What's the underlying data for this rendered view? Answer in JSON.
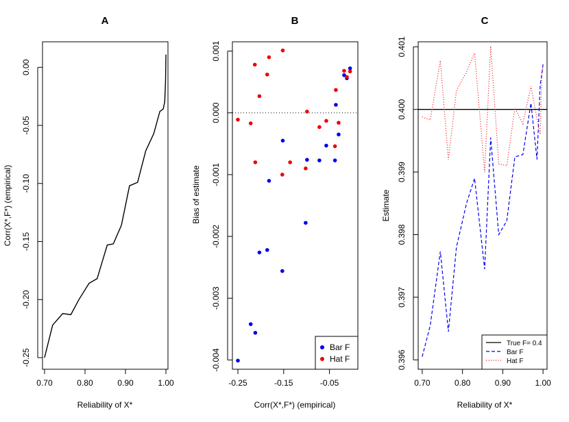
{
  "chart_data": [
    {
      "panel": "A",
      "type": "line",
      "title": "A",
      "xlabel": "Reliability of X*",
      "ylabel": "Corr(X*,F*) (empirical)",
      "xlim": [
        0.695,
        1.005
      ],
      "ylim": [
        -0.26,
        0.022
      ],
      "xticks": [
        {
          "v": 0.7,
          "label": "0.70"
        },
        {
          "v": 0.8,
          "label": "0.80"
        },
        {
          "v": 0.9,
          "label": "0.90"
        },
        {
          "v": 1.0,
          "label": "1.00"
        }
      ],
      "yticks": [
        {
          "v": 0.0,
          "label": "0.00"
        },
        {
          "v": -0.05,
          "label": "-0.05"
        },
        {
          "v": -0.1,
          "label": "-0.10"
        },
        {
          "v": -0.15,
          "label": "-0.15"
        },
        {
          "v": -0.2,
          "label": "-0.20"
        },
        {
          "v": -0.25,
          "label": "-0.25"
        }
      ],
      "series": [
        {
          "name": "Corr",
          "x": [
            0.7,
            0.72,
            0.745,
            0.765,
            0.785,
            0.81,
            0.83,
            0.855,
            0.87,
            0.89,
            0.91,
            0.93,
            0.95,
            0.97,
            0.985,
            0.993,
            0.997,
            0.999,
            1.0
          ],
          "y": [
            -0.25,
            -0.222,
            -0.212,
            -0.213,
            -0.2,
            -0.186,
            -0.182,
            -0.153,
            -0.152,
            -0.136,
            -0.102,
            -0.099,
            -0.072,
            -0.057,
            -0.038,
            -0.036,
            -0.03,
            -0.012,
            0.011
          ]
        }
      ]
    },
    {
      "panel": "B",
      "type": "scatter",
      "title": "B",
      "xlabel": "Corr(X*,F*) (empirical)",
      "ylabel": "Bias of estimate",
      "xlim": [
        -0.262,
        0.012
      ],
      "ylim": [
        -0.00415,
        0.00115
      ],
      "xticks": [
        {
          "v": -0.25,
          "label": "-0.25"
        },
        {
          "v": -0.15,
          "label": "-0.15"
        },
        {
          "v": -0.05,
          "label": "-0.05"
        }
      ],
      "yticks": [
        {
          "v": 0.001,
          "label": "0.001"
        },
        {
          "v": 0.0,
          "label": "0.000"
        },
        {
          "v": -0.001,
          "label": "-0.001"
        },
        {
          "v": -0.002,
          "label": "-0.002"
        },
        {
          "v": -0.003,
          "label": "-0.003"
        },
        {
          "v": -0.004,
          "label": "-0.004"
        }
      ],
      "reference_line": 0.0,
      "legend": {
        "position": "bottom-right",
        "entries": [
          "Bar F",
          "Hat F"
        ]
      },
      "series": [
        {
          "name": "Bar F",
          "color": "#0000ee",
          "x": [
            -0.25,
            -0.222,
            -0.212,
            -0.203,
            -0.186,
            -0.182,
            -0.153,
            -0.152,
            -0.102,
            -0.099,
            -0.072,
            -0.057,
            -0.038,
            -0.036,
            -0.03,
            -0.018,
            -0.012,
            -0.005
          ],
          "y": [
            -0.00401,
            -0.00342,
            -0.00356,
            -0.00226,
            -0.00222,
            -0.0011,
            -0.00256,
            -0.00045,
            -0.00178,
            -0.00076,
            -0.00077,
            -0.00053,
            -0.00077,
            0.00013,
            -0.00035,
            0.00061,
            0.00056,
            0.00072
          ]
        },
        {
          "name": "Hat F",
          "color": "#ee0000",
          "x": [
            -0.25,
            -0.222,
            -0.212,
            -0.213,
            -0.203,
            -0.186,
            -0.182,
            -0.153,
            -0.152,
            -0.136,
            -0.102,
            -0.099,
            -0.072,
            -0.057,
            -0.038,
            -0.036,
            -0.03,
            -0.018,
            -0.012,
            -0.005
          ],
          "y": [
            -0.00011,
            -0.00017,
            -0.0008,
            0.00078,
            0.00027,
            0.00062,
            0.0009,
            -0.001,
            0.00101,
            -0.0008,
            -0.0009,
            2e-05,
            -0.00023,
            -0.00013,
            -0.00054,
            0.00037,
            -0.00016,
            0.00068,
            0.00058,
            0.00067
          ]
        }
      ]
    },
    {
      "panel": "C",
      "type": "line",
      "title": "C",
      "xlabel": "Reliability of X*",
      "ylabel": "Estimate",
      "xlim": [
        0.69,
        1.01
      ],
      "ylim": [
        0.39585,
        0.40108
      ],
      "xticks": [
        {
          "v": 0.7,
          "label": "0.70"
        },
        {
          "v": 0.8,
          "label": "0.80"
        },
        {
          "v": 0.9,
          "label": "0.90"
        },
        {
          "v": 1.0,
          "label": "1.00"
        }
      ],
      "yticks": [
        {
          "v": 0.396,
          "label": "0.396"
        },
        {
          "v": 0.397,
          "label": "0.397"
        },
        {
          "v": 0.398,
          "label": "0.398"
        },
        {
          "v": 0.399,
          "label": "0.399"
        },
        {
          "v": 0.4,
          "label": "0.400"
        },
        {
          "v": 0.401,
          "label": "0.401"
        }
      ],
      "legend": {
        "position": "bottom-right",
        "entries": [
          "True F= 0.4",
          "Bar F",
          "Hat F"
        ]
      },
      "series": [
        {
          "name": "True F= 0.4",
          "style": "solid",
          "color": "#000000",
          "x": [
            0.69,
            1.01
          ],
          "y": [
            0.4,
            0.4
          ]
        },
        {
          "name": "Bar F",
          "style": "dashed",
          "color": "#0000ee",
          "x": [
            0.7,
            0.72,
            0.745,
            0.765,
            0.785,
            0.81,
            0.83,
            0.855,
            0.87,
            0.89,
            0.91,
            0.93,
            0.95,
            0.97,
            0.985,
            0.993,
            0.997,
            1.0
          ],
          "y": [
            0.39605,
            0.39655,
            0.39773,
            0.39645,
            0.3978,
            0.3985,
            0.3989,
            0.39745,
            0.39955,
            0.398,
            0.39822,
            0.39924,
            0.39928,
            0.4001,
            0.3992,
            0.4004,
            0.40056,
            0.40072
          ]
        },
        {
          "name": "Hat F",
          "style": "dotted",
          "color": "#ee0000",
          "x": [
            0.7,
            0.72,
            0.745,
            0.765,
            0.785,
            0.81,
            0.83,
            0.855,
            0.87,
            0.89,
            0.91,
            0.93,
            0.95,
            0.97,
            0.985,
            0.993,
            0.997,
            1.0
          ],
          "y": [
            0.39988,
            0.39983,
            0.40078,
            0.3992,
            0.4003,
            0.4006,
            0.4009,
            0.399,
            0.40101,
            0.39913,
            0.3991,
            0.40002,
            0.39977,
            0.40037,
            0.39985,
            0.3996,
            0.40058,
            0.40067
          ]
        }
      ]
    }
  ]
}
